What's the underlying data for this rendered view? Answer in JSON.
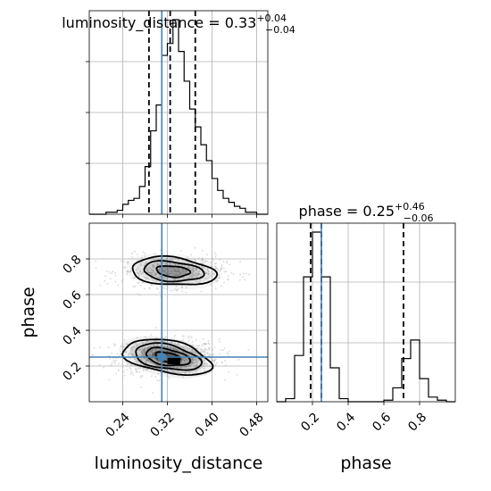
{
  "chart_data": {
    "type": "corner",
    "parameters": [
      "luminosity_distance",
      "phase"
    ],
    "truths": {
      "luminosity_distance": 0.31,
      "phase": 0.25
    },
    "panels": {
      "luminosity_distance_hist": {
        "type": "histogram",
        "title_param": "luminosity_distance",
        "title_median": "0.33",
        "title_plus": "+0.04",
        "title_minus": "−0.04",
        "xlim": [
          0.18,
          0.5
        ],
        "quantiles": [
          0.287,
          0.325,
          0.37
        ],
        "bin_edges": [
          0.18,
          0.19,
          0.2,
          0.21,
          0.22,
          0.23,
          0.24,
          0.25,
          0.26,
          0.27,
          0.28,
          0.29,
          0.3,
          0.31,
          0.32,
          0.33,
          0.34,
          0.35,
          0.36,
          0.37,
          0.38,
          0.39,
          0.4,
          0.41,
          0.42,
          0.43,
          0.44,
          0.45,
          0.46,
          0.47,
          0.48,
          0.49,
          0.5
        ],
        "counts": [
          0,
          0,
          0,
          1,
          1,
          2,
          5,
          7,
          8,
          14,
          24,
          42,
          55,
          80,
          86,
          98,
          82,
          67,
          53,
          44,
          35,
          27,
          18,
          12,
          8,
          6,
          4,
          3,
          1,
          1,
          0,
          0
        ]
      },
      "phase_hist": {
        "type": "histogram",
        "title_param": "phase",
        "title_median": "0.25",
        "title_plus": "+0.46",
        "title_minus": "−0.06",
        "xlim": [
          0.0,
          1.0
        ],
        "quantiles": [
          0.19,
          0.25,
          0.71
        ],
        "xticks": [
          "0.2",
          "0.4",
          "0.6",
          "0.8"
        ],
        "bin_edges": [
          0.0,
          0.05,
          0.1,
          0.15,
          0.2,
          0.25,
          0.3,
          0.35,
          0.4,
          0.45,
          0.5,
          0.55,
          0.6,
          0.65,
          0.7,
          0.75,
          0.8,
          0.85,
          0.9,
          0.95,
          1.0
        ],
        "counts": [
          0,
          2,
          30,
          81,
          110,
          81,
          22,
          2,
          0,
          0,
          0,
          0,
          1,
          9,
          28,
          40,
          15,
          3,
          1,
          0
        ]
      },
      "joint": {
        "type": "2d-histogram",
        "xlabel": "luminosity_distance",
        "ylabel": "phase",
        "xlim": [
          0.18,
          0.5
        ],
        "ylim": [
          0.0,
          1.0
        ],
        "xticks": [
          "0.24",
          "0.32",
          "0.40",
          "0.48"
        ],
        "yticks": [
          "0.2",
          "0.4",
          "0.6",
          "0.8"
        ],
        "modes": [
          {
            "center": [
              0.32,
              0.25
            ],
            "spread": [
              0.04,
              0.05
            ]
          },
          {
            "center": [
              0.33,
              0.73
            ],
            "spread": [
              0.04,
              0.045
            ]
          }
        ],
        "peak_cell": [
          0.33,
          0.23
        ]
      }
    },
    "colors": {
      "truth": "#4682b4",
      "histogram": "#000000",
      "quantile": "#000000",
      "scatter": "#b8b8b8",
      "contour": "#000000",
      "density": "#000000"
    }
  }
}
